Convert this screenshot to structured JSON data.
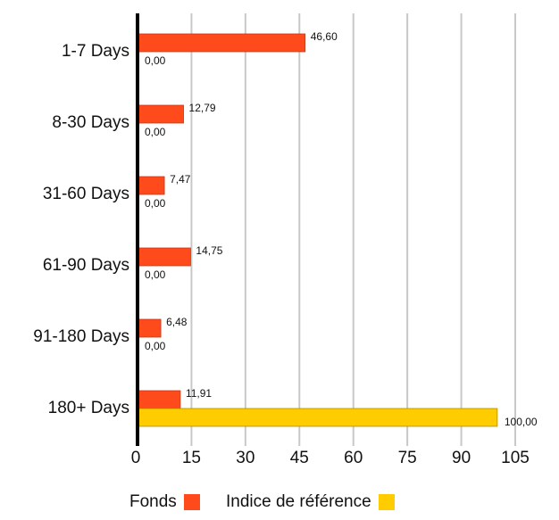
{
  "chart_data": {
    "type": "bar",
    "orientation": "horizontal",
    "categories": [
      "1-7 Days",
      "8-30 Days",
      "31-60 Days",
      "61-90 Days",
      "91-180 Days",
      "180+ Days"
    ],
    "series": [
      {
        "name": "Fonds",
        "color": "#FF4A1C",
        "values": [
          46.6,
          12.79,
          7.47,
          14.75,
          6.48,
          11.91
        ],
        "labels": [
          "46,60",
          "12,79",
          "7,47",
          "14,75",
          "6,48",
          "11,91"
        ]
      },
      {
        "name": "Indice de référence",
        "color": "#FFCC00",
        "values": [
          0.0,
          0.0,
          0.0,
          0.0,
          0.0,
          100.0
        ],
        "labels": [
          "0,00",
          "0,00",
          "0,00",
          "0,00",
          "0,00",
          "100,00"
        ]
      }
    ],
    "x_ticks": [
      "0",
      "15",
      "30",
      "45",
      "60",
      "75",
      "90",
      "105"
    ],
    "xlim": [
      0,
      105
    ],
    "xlabel": "",
    "ylabel": "",
    "grid": true,
    "legend_position": "bottom"
  }
}
